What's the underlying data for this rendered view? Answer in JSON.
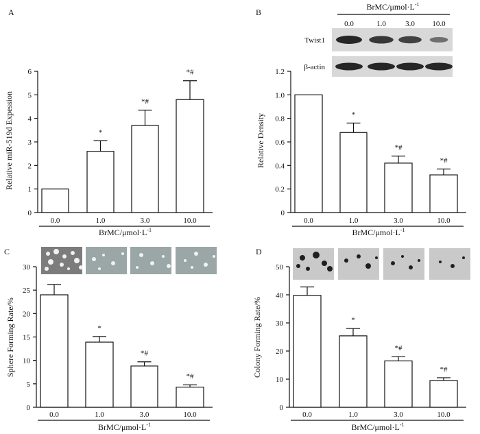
{
  "chart_data": [
    {
      "panel": "A",
      "type": "bar",
      "categories": [
        "0.0",
        "1.0",
        "3.0",
        "10.0"
      ],
      "values": [
        1.0,
        2.6,
        3.7,
        4.8
      ],
      "errors": [
        0.0,
        0.45,
        0.65,
        0.8
      ],
      "significance": [
        "",
        "*",
        "*#",
        "*#"
      ],
      "xlabel": "BrMC/μmol·L",
      "xlabel_sup": "-1",
      "ylabel": "Relative miR-519d Expession",
      "ylim": [
        0,
        6
      ],
      "yticks": [
        "0",
        "1",
        "2",
        "3",
        "4",
        "5",
        "6"
      ]
    },
    {
      "panel": "B",
      "type": "bar",
      "categories": [
        "0.0",
        "1.0",
        "3.0",
        "10.0"
      ],
      "values": [
        1.0,
        0.68,
        0.42,
        0.32
      ],
      "errors": [
        0.0,
        0.08,
        0.06,
        0.05
      ],
      "significance": [
        "",
        "*",
        "*#",
        "*#"
      ],
      "xlabel": "BrMC/μmol·L",
      "xlabel_sup": "-1",
      "ylabel": "Relative Density",
      "ylim": [
        0,
        1.2
      ],
      "yticks": [
        "0",
        "0.2",
        "0.4",
        "0.6",
        "0.8",
        "1.0",
        "1.2"
      ],
      "blot": {
        "header": "BrMC/μmol·L",
        "header_sup": "-1",
        "lanes": [
          "0.0",
          "1.0",
          "3.0",
          "10.0"
        ],
        "rows": [
          "Twist1",
          "β-actin"
        ],
        "twist_intensity": [
          1.0,
          0.85,
          0.75,
          0.35
        ]
      }
    },
    {
      "panel": "C",
      "type": "bar",
      "categories": [
        "0.0",
        "1.0",
        "3.0",
        "10.0"
      ],
      "values": [
        24.0,
        13.9,
        8.8,
        4.3
      ],
      "errors": [
        2.2,
        1.2,
        0.9,
        0.5
      ],
      "significance": [
        "",
        "*",
        "*#",
        "*#"
      ],
      "xlabel": "BrMC/μmol·L",
      "xlabel_sup": "-1",
      "ylabel": "Sphere Forming Rate/%",
      "ylim": [
        0,
        30
      ],
      "yticks": [
        "0",
        "5",
        "10",
        "15",
        "20",
        "25",
        "30"
      ]
    },
    {
      "panel": "D",
      "type": "bar",
      "categories": [
        "0.0",
        "1.0",
        "3.0",
        "10.0"
      ],
      "values": [
        39.8,
        25.4,
        16.5,
        9.5
      ],
      "errors": [
        3.0,
        2.6,
        1.5,
        1.0
      ],
      "significance": [
        "",
        "*",
        "*#",
        "*#"
      ],
      "xlabel": "BrMC/μmol·L",
      "xlabel_sup": "-1",
      "ylabel": "Colony Forming Rate/%",
      "ylim": [
        0,
        50
      ],
      "yticks": [
        "0",
        "10",
        "20",
        "30",
        "40",
        "50"
      ]
    }
  ],
  "colors": {
    "ink": "#111111",
    "bar_fill": "#ffffff",
    "blot_bg": "#d8d8d8",
    "band": "#1c1c1c",
    "sphere_bg": "#9aa7a6",
    "sphere_bg_first": "#7c7c7c",
    "colony_bg": "#c9c9c9"
  }
}
